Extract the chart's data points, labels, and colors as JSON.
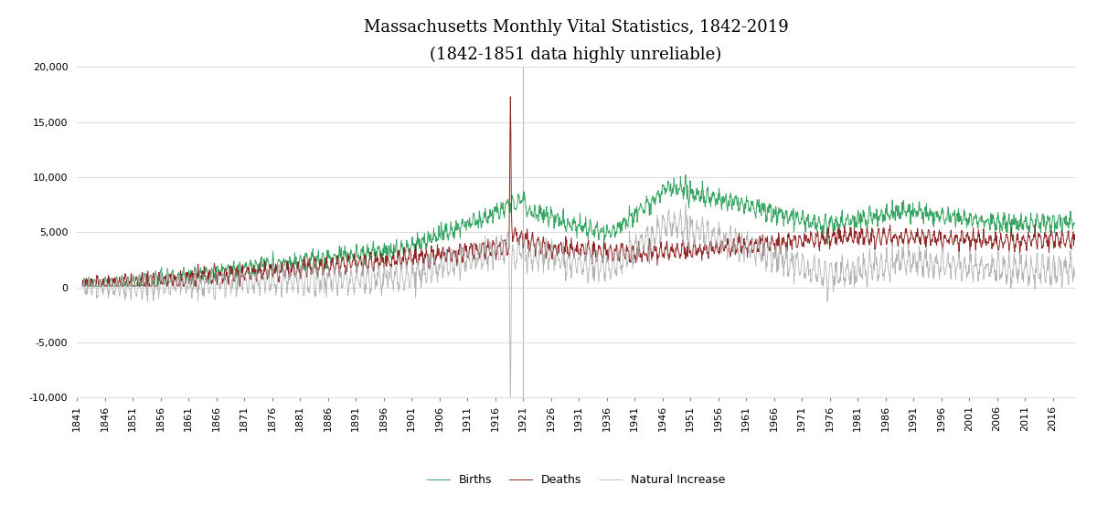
{
  "title": "Massachusetts Monthly Vital Statistics, 1842-2019",
  "subtitle": "(1842-1851 data highly unreliable)",
  "ylim": [
    -10000,
    20000
  ],
  "yticks": [
    -10000,
    -5000,
    0,
    5000,
    10000,
    15000,
    20000
  ],
  "births_color": "#2ca05a",
  "deaths_color": "#8b1a1a",
  "natural_increase_color": "#aaaaaa",
  "background_color": "#ffffff",
  "vline_year": 1921,
  "vline_color": "#888888",
  "grid_color": "#cccccc",
  "legend_labels": [
    "Births",
    "Deaths",
    "Natural Increase"
  ],
  "title_fontsize": 13,
  "subtitle_fontsize": 9,
  "tick_fontsize": 8
}
